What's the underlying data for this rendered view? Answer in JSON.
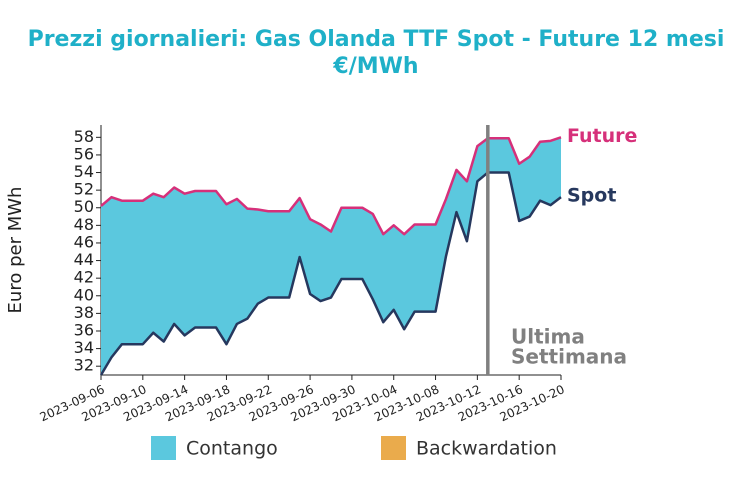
{
  "chart_data": {
    "type": "spread-area",
    "title": "Prezzi giornalieri: Gas Olanda TTF Spot - Future 12 mesi",
    "subtitle": "€/MWh",
    "y_label": "Euro per MWh",
    "x": [
      "2023-09-06",
      "2023-09-07",
      "2023-09-08",
      "2023-09-09",
      "2023-09-10",
      "2023-09-11",
      "2023-09-12",
      "2023-09-13",
      "2023-09-14",
      "2023-09-15",
      "2023-09-16",
      "2023-09-17",
      "2023-09-18",
      "2023-09-19",
      "2023-09-20",
      "2023-09-21",
      "2023-09-22",
      "2023-09-23",
      "2023-09-24",
      "2023-09-25",
      "2023-09-26",
      "2023-09-27",
      "2023-09-28",
      "2023-09-29",
      "2023-09-30",
      "2023-10-01",
      "2023-10-02",
      "2023-10-03",
      "2023-10-04",
      "2023-10-05",
      "2023-10-06",
      "2023-10-07",
      "2023-10-08",
      "2023-10-09",
      "2023-10-10",
      "2023-10-11",
      "2023-10-12",
      "2023-10-13",
      "2023-10-14",
      "2023-10-15",
      "2023-10-16",
      "2023-10-17",
      "2023-10-18",
      "2023-10-19",
      "2023-10-20"
    ],
    "series": [
      {
        "name": "Future",
        "color": "#d6307a",
        "values": [
          50.2,
          51.2,
          50.8,
          50.8,
          50.8,
          51.6,
          51.2,
          52.3,
          51.6,
          51.9,
          51.9,
          51.9,
          50.4,
          51.0,
          49.9,
          49.8,
          49.6,
          49.6,
          49.6,
          51.1,
          48.7,
          48.1,
          47.3,
          50.0,
          50.0,
          50.0,
          49.3,
          47.0,
          48.0,
          47.0,
          48.1,
          48.1,
          48.1,
          51.0,
          54.3,
          53.0,
          57.0,
          57.9,
          57.9,
          57.9,
          55.0,
          55.8,
          57.5,
          57.6,
          58.0
        ]
      },
      {
        "name": "Spot",
        "color": "#26385e",
        "values": [
          31.0,
          33.0,
          34.5,
          34.5,
          34.5,
          35.8,
          34.8,
          36.8,
          35.5,
          36.4,
          36.4,
          36.4,
          34.5,
          36.8,
          37.4,
          39.1,
          39.8,
          39.8,
          39.8,
          44.4,
          40.2,
          39.4,
          39.8,
          41.9,
          41.9,
          41.9,
          39.6,
          37.0,
          38.4,
          36.2,
          38.2,
          38.2,
          38.2,
          44.5,
          49.5,
          46.2,
          53.0,
          54.0,
          54.0,
          54.0,
          48.5,
          49.0,
          50.8,
          50.3,
          51.2
        ]
      }
    ],
    "legend": [
      {
        "name": "Contango",
        "color": "#5bc8de"
      },
      {
        "name": "Backwardation",
        "color": "#eaab4c"
      }
    ],
    "vline": {
      "x": "2023-10-13",
      "color": "#808080",
      "label": [
        "Ultima",
        "Settimana"
      ]
    },
    "xlim": [
      "2023-09-06",
      "2023-10-20"
    ],
    "xticks": [
      "2023-09-06",
      "2023-09-10",
      "2023-09-14",
      "2023-09-18",
      "2023-09-22",
      "2023-09-26",
      "2023-09-30",
      "2023-10-04",
      "2023-10-08",
      "2023-10-12",
      "2023-10-16",
      "2023-10-20"
    ],
    "ylim": [
      31,
      59.4
    ],
    "yticks": [
      32,
      34,
      36,
      38,
      40,
      42,
      44,
      46,
      48,
      50,
      52,
      54,
      56,
      58
    ]
  }
}
